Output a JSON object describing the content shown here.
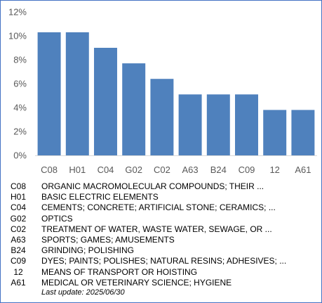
{
  "chart_data": {
    "type": "bar",
    "categories": [
      "C08",
      "H01",
      "C04",
      "G02",
      "C02",
      "A63",
      "B24",
      "C09",
      "12",
      "A61"
    ],
    "values": [
      10.3,
      10.3,
      9.0,
      7.7,
      6.4,
      5.1,
      5.1,
      5.1,
      3.8,
      3.8
    ],
    "ylim": [
      0,
      12
    ],
    "yticks": [
      0,
      2,
      4,
      6,
      8,
      10,
      12
    ],
    "ytick_labels": [
      "0%",
      "2%",
      "4%",
      "6%",
      "8%",
      "10%",
      "12%"
    ],
    "grid": false,
    "bar_color": "#4f81bd",
    "title": "",
    "xlabel": "",
    "ylabel": ""
  },
  "legend": [
    {
      "code": "C08",
      "desc": "ORGANIC MACROMOLECULAR COMPOUNDS; THEIR ..."
    },
    {
      "code": "H01",
      "desc": "BASIC ELECTRIC ELEMENTS"
    },
    {
      "code": "C04",
      "desc": "CEMENTS; CONCRETE; ARTIFICIAL STONE; CERAMICS; ..."
    },
    {
      "code": "G02",
      "desc": "OPTICS"
    },
    {
      "code": "C02",
      "desc": "TREATMENT OF WATER, WASTE WATER, SEWAGE, OR ..."
    },
    {
      "code": "A63",
      "desc": "SPORTS; GAMES; AMUSEMENTS"
    },
    {
      "code": "B24",
      "desc": "GRINDING; POLISHING"
    },
    {
      "code": "C09",
      "desc": "DYES; PAINTS; POLISHES; NATURAL RESINS; ADHESIVES; ..."
    },
    {
      "code": "12",
      "desc": "MEANS OF TRANSPORT OR HOISTING"
    },
    {
      "code": "A61",
      "desc": "MEDICAL OR VETERINARY SCIENCE; HYGIENE"
    }
  ],
  "last_update": "Last update:  2025/06/30",
  "colors": {
    "border": "#4472c4",
    "axis": "#d9d9d9",
    "text": "#595959"
  }
}
